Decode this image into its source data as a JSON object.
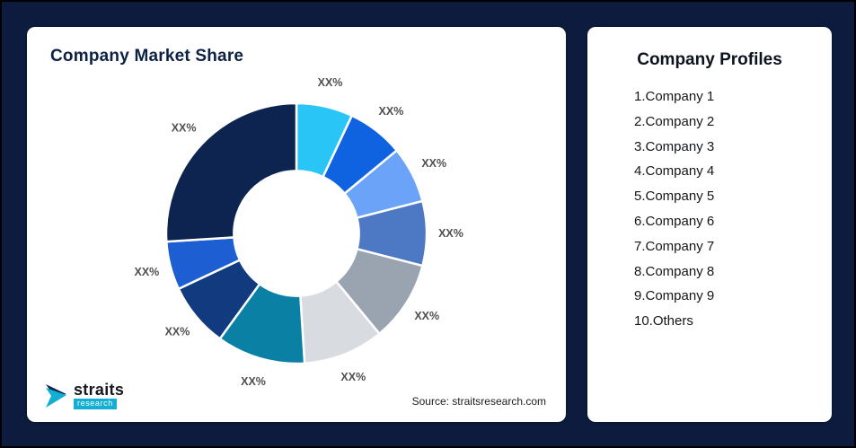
{
  "page": {
    "background": "#0d1c3e"
  },
  "left_card": {
    "title": "Company Market Share",
    "source": "Source: straitsresearch.com",
    "logo": {
      "primary": "straits",
      "secondary": "research",
      "accent": "#12aed3"
    }
  },
  "right_card": {
    "title": "Company Profiles",
    "items": [
      "1.Company 1",
      "2.Company 2",
      "3.Company 3",
      "4.Company 4",
      "5.Company 5",
      "6.Company 6",
      "7.Company 7",
      "8.Company 8",
      "9.Company 9",
      "10.Others"
    ]
  },
  "chart_data": {
    "type": "pie",
    "subtype": "donut",
    "title": "Company Market Share",
    "source": "Source: straitsresearch.com",
    "start_angle_deg": -90,
    "direction": "clockwise",
    "inner_radius_ratio": 0.48,
    "note_labels": "all slices labeled XX% (placeholder percentages)",
    "segments": [
      {
        "name": "Company 1",
        "label": "XX%",
        "value": 7,
        "color": "#29c5f6"
      },
      {
        "name": "Company 2",
        "label": "XX%",
        "value": 7,
        "color": "#0f62e0"
      },
      {
        "name": "Company 3",
        "label": "XX%",
        "value": 7,
        "color": "#6aa3f8"
      },
      {
        "name": "Company 4",
        "label": "XX%",
        "value": 8,
        "color": "#4d79c4"
      },
      {
        "name": "Company 5",
        "label": "XX%",
        "value": 10,
        "color": "#9aa4b0"
      },
      {
        "name": "Company 6",
        "label": "XX%",
        "value": 10,
        "color": "#d8dce1"
      },
      {
        "name": "Company 7",
        "label": "XX%",
        "value": 11,
        "color": "#0b80a5"
      },
      {
        "name": "Company 8",
        "label": "XX%",
        "value": 8,
        "color": "#123a7e"
      },
      {
        "name": "Company 9",
        "label": "XX%",
        "value": 6,
        "color": "#1d5fd3"
      },
      {
        "name": "Others",
        "label": "XX%",
        "value": 26,
        "color": "#0d2350"
      }
    ]
  }
}
